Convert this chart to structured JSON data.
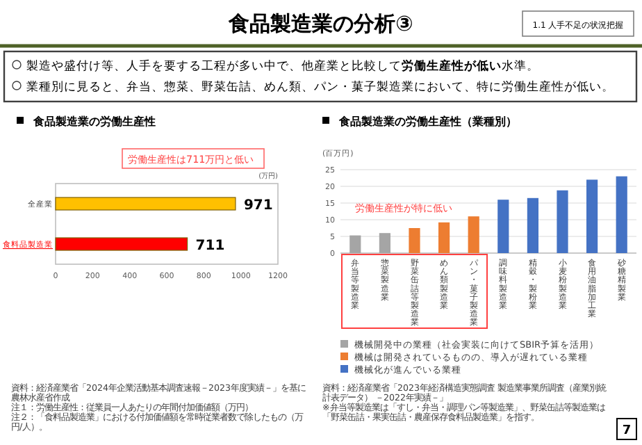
{
  "chart_data": [
    {
      "type": "other",
      "title": "食品製造業の分析③",
      "subtitle": "1.1 人手不足の状況把握",
      "annotations": [
        "製造や盛付け等、人手を要する工程が多い中で、他産業と比較して**労働生産性が低い**水準。",
        "業種別に見ると、弁当、惣菜、野菜缶詰、めん類、パン・菓子製造業において、特に労働生産性が低い。",
        "7"
      ]
    },
    {
      "type": "bar",
      "orientation": "horizontal",
      "title": "食品製造業の労働生産性",
      "xlabel": "(万円)",
      "categories": [
        "全産業",
        "食料品製造業"
      ],
      "values": [
        971,
        711
      ],
      "colors": [
        "#ffc000",
        "#ff0000"
      ],
      "data_labels": true,
      "xlim": [
        0,
        1200
      ],
      "xticks": [
        0,
        200,
        400,
        600,
        800,
        1000,
        1200
      ],
      "annotations": [
        "労働生産性は711万円と低い",
        "資料：経済産業省「2024年企業活動基本調査速報－2023年度実績－」を基に農林水産省作成",
        "注１：労働生産性：従業員一人あたりの年間付加価値額（万円）",
        "注２：「食料品製造業」における付加価値額を常時従業者数で除したもの（万円/人）。"
      ]
    },
    {
      "type": "bar",
      "stacked": true,
      "title": "食品製造業の労働生産性（業種別）",
      "ylabel": "(百万円)",
      "categories": [
        "弁当等製造業",
        "惣菜製造業",
        "野菜缶詰等製造業",
        "めん類製造業",
        "パン・菓子製造業",
        "調味料製造業",
        "精穀・製粉業",
        "小麦粉製造業",
        "食用油脂加工業",
        "砂糖精製業"
      ],
      "series": [
        {
          "name": "機械開発中の業種（社会実装に向けてSBIR予算を活用）",
          "color": "#a5a5a5",
          "values": [
            5.3,
            6.0,
            null,
            null,
            null,
            null,
            null,
            null,
            null,
            null
          ]
        },
        {
          "name": "機械は開発されているものの、導入が遅れている業種",
          "color": "#ed7d31",
          "values": [
            null,
            null,
            7.5,
            9.2,
            11.0,
            null,
            null,
            null,
            null,
            null
          ]
        },
        {
          "name": "機械化が進んでいる業種",
          "color": "#4472c4",
          "values": [
            null,
            null,
            null,
            null,
            null,
            16.0,
            16.5,
            18.8,
            22.0,
            23.0
          ]
        }
      ],
      "ylim": [
        0,
        25
      ],
      "yticks": [
        0,
        5,
        10,
        15,
        20,
        25
      ],
      "grid": "y",
      "legend": "bottom",
      "annotations": [
        "労働生産性が特に低い",
        "資料：経済産業省「2023年経済構造実態調査 製造業事業所調査（産業別統計表データ） －2022年実績－」",
        "※弁当等製造業は「すし・弁当・調理パン等製造業」、野菜缶詰等製造業は「野菜缶詰・果実缶詰・農産保存食料品製造業」を指す。"
      ]
    }
  ]
}
